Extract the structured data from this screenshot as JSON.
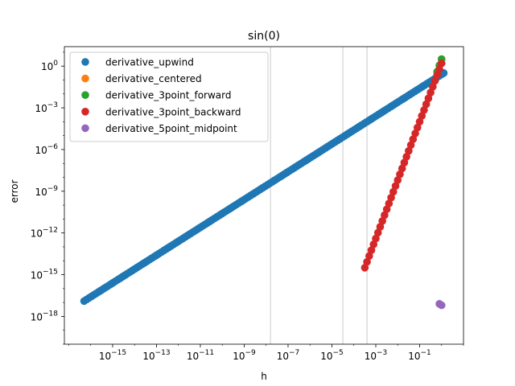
{
  "chart_data": {
    "type": "scatter",
    "title": "sin(0)",
    "xlabel": "h",
    "ylabel": "error",
    "xscale": "log",
    "yscale": "log",
    "xlim_log10": [
      -17.2,
      1.0
    ],
    "ylim_log10": [
      -20.0,
      1.4
    ],
    "grid": false,
    "legend_position": "upper-left",
    "x_tick_exponents": [
      -15,
      -13,
      -11,
      -9,
      -7,
      -5,
      -3,
      -1
    ],
    "y_tick_exponents": [
      0,
      -3,
      -6,
      -9,
      -12,
      -15,
      -18
    ],
    "vertical_lines_log10": [
      -7.8,
      -4.5,
      -3.4
    ],
    "series": [
      {
        "name": "derivative_upwind",
        "color": "#1f77b4",
        "x_log10_range": [
          -16.3,
          0.1
        ],
        "count": 150,
        "slope": 1.0,
        "intercept_log10": -0.6
      },
      {
        "name": "derivative_centered",
        "color": "#ff7f0e",
        "x_log10": [
          -0.2,
          -0.1,
          0.0
        ],
        "y_log10": [
          -0.4,
          0.05,
          0.5
        ]
      },
      {
        "name": "derivative_3point_forward",
        "color": "#2ca02c",
        "x_log10": [
          -0.2,
          -0.1,
          0.0
        ],
        "y_log10": [
          -0.4,
          0.05,
          0.5
        ]
      },
      {
        "name": "derivative_3point_backward",
        "color": "#d62728",
        "x_log10_range": [
          -3.5,
          0.0
        ],
        "count": 36,
        "slope": 4.2,
        "intercept_log10": 0.2
      },
      {
        "name": "derivative_5point_midpoint",
        "color": "#9467bd",
        "x_log10": [
          -0.1,
          0.0
        ],
        "y_log10": [
          -17.1,
          -17.2
        ]
      }
    ]
  }
}
